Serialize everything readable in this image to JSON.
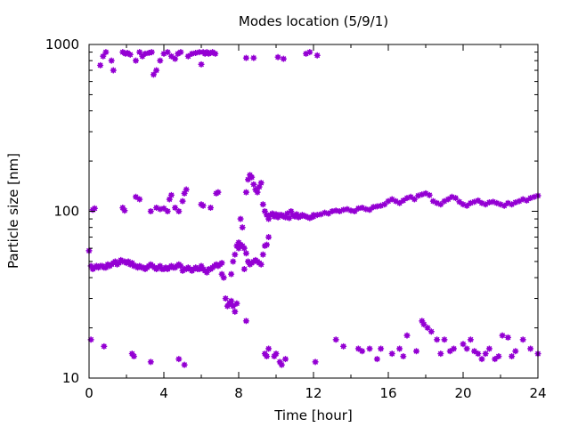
{
  "chart_data": {
    "type": "scatter",
    "title": "Modes location (5/9/1)",
    "xlabel": "Time [hour]",
    "ylabel": "Particle size [nm]",
    "xlim": [
      0,
      24
    ],
    "ylim": [
      10,
      1000
    ],
    "y_scale": "log",
    "x_ticks": [
      0,
      4,
      8,
      12,
      16,
      20,
      24
    ],
    "x_tick_labels": [
      "0",
      "4",
      "8",
      "12",
      "16",
      "20",
      "24"
    ],
    "y_ticks": [
      10,
      100,
      1000
    ],
    "y_tick_labels": [
      "10",
      "100",
      "1000"
    ],
    "grid": false,
    "marker_color": "#9400D3",
    "series": [
      {
        "x": [
          0.6,
          0.75,
          0.9,
          1.2,
          1.3,
          1.8,
          1.95,
          2.05,
          2.2,
          2.5,
          2.7,
          2.85,
          3,
          3.2,
          3.35,
          3.45,
          3.6,
          3.8,
          4,
          4.2,
          4.4,
          4.6,
          4.75,
          4.9,
          5.3,
          5.5,
          5.7,
          5.9,
          6,
          6.1,
          6.2,
          6.3,
          6.4,
          6.5,
          6.6,
          6.75,
          8.4,
          8.8,
          10.1,
          10.4,
          11.6,
          11.8,
          12.2
        ],
        "y": [
          750,
          850,
          900,
          800,
          700,
          900,
          880,
          890,
          870,
          800,
          900,
          850,
          880,
          890,
          900,
          660,
          700,
          800,
          880,
          900,
          850,
          820,
          880,
          900,
          850,
          880,
          890,
          900,
          760,
          900,
          880,
          900,
          880,
          890,
          900,
          880,
          830,
          830,
          840,
          820,
          880,
          900,
          860
        ]
      },
      {
        "x": [
          0,
          0.1,
          0.2,
          0.3,
          0.4,
          0.5,
          0.6,
          0.7,
          0.8,
          0.9,
          1,
          1.1,
          1.2,
          1.3,
          1.4,
          1.5,
          1.6,
          1.7,
          1.8,
          1.9,
          2,
          2.1,
          2.2,
          2.3,
          2.4,
          2.5,
          2.6,
          2.7,
          2.8,
          2.9,
          3,
          3.1,
          3.2,
          3.3,
          3.4,
          3.5,
          3.6,
          3.7,
          3.8,
          3.9,
          4,
          4.1,
          4.2,
          4.3,
          4.4,
          4.5,
          4.6,
          4.7,
          4.8,
          4.9,
          5,
          5.1,
          5.2,
          5.3,
          5.4,
          5.5,
          5.6,
          5.7,
          5.8,
          5.9,
          6,
          6.1,
          6.2,
          6.3,
          6.4,
          6.5,
          6.6,
          6.7,
          6.8,
          6.9,
          7,
          7.1
        ],
        "y": [
          58,
          47,
          45,
          46,
          47,
          46,
          47,
          47,
          46,
          46,
          48,
          47,
          48,
          49,
          50,
          48,
          49,
          51,
          50,
          50,
          49,
          50,
          48,
          49,
          47,
          47,
          46,
          47,
          46,
          46,
          45,
          46,
          47,
          48,
          47,
          46,
          45,
          46,
          47,
          45,
          45,
          46,
          45,
          46,
          47,
          46,
          46,
          47,
          48,
          47,
          44,
          45,
          45,
          46,
          45,
          44,
          45,
          46,
          45,
          45,
          47,
          45,
          44,
          43,
          45,
          45,
          46,
          47,
          48,
          47,
          48,
          49
        ]
      },
      {
        "x": [
          7.1,
          7.2,
          7.3,
          7.4,
          7.5,
          7.6,
          7.7,
          7.8,
          7.9,
          8,
          8.1,
          8.2,
          8.3,
          8.4,
          8.5,
          8.6,
          8.7,
          8.8,
          8.9,
          9,
          9.1,
          9.2,
          9.3,
          9.4,
          9.5,
          9.6,
          9.7,
          9.8,
          9.9,
          10,
          10.1,
          10.2,
          10.3,
          10.4,
          10.5,
          10.6,
          10.7,
          10.8,
          10.9,
          11,
          11.1,
          11.2,
          11.3,
          11.4,
          11.5,
          11.6,
          11.7,
          11.8,
          11.9,
          12
        ],
        "y": [
          42,
          40,
          30,
          27,
          28,
          29,
          27,
          25,
          28,
          60,
          63,
          62,
          60,
          130,
          155,
          165,
          160,
          145,
          135,
          130,
          140,
          148,
          110,
          100,
          95,
          90,
          95,
          97,
          93,
          96,
          92,
          95,
          95,
          93,
          92,
          97,
          91,
          100,
          95,
          93,
          96,
          92,
          93,
          95,
          94,
          93,
          92,
          91,
          92,
          95
        ]
      },
      {
        "x": [
          8.4,
          8.5,
          8.6,
          8.7,
          8.8,
          8.9,
          9,
          9.1,
          9.2,
          9.3,
          9.4,
          9.5,
          9.6
        ],
        "y": [
          56,
          50,
          48,
          49,
          50,
          51,
          50,
          49,
          48,
          55,
          62,
          63,
          70
        ]
      },
      {
        "x": [
          7.6,
          7.7,
          7.8,
          7.9,
          8,
          8.1,
          8.2,
          8.3,
          8.4
        ],
        "y": [
          42,
          50,
          55,
          62,
          65,
          90,
          80,
          45,
          22
        ]
      },
      {
        "x": [
          12,
          12.2,
          12.4,
          12.6,
          12.8,
          13,
          13.2,
          13.4,
          13.6,
          13.8,
          14,
          14.2,
          14.4,
          14.6,
          14.8,
          15,
          15.2,
          15.4,
          15.6,
          15.8,
          16,
          16.2,
          16.4,
          16.6,
          16.8,
          17,
          17.2,
          17.4,
          17.6,
          17.8,
          18,
          18.2,
          18.4,
          18.6,
          18.8,
          19,
          19.2,
          19.4,
          19.6,
          19.8,
          20,
          20.2,
          20.4,
          20.6,
          20.8,
          21,
          21.2,
          21.4,
          21.6,
          21.8,
          22,
          22.2,
          22.4,
          22.6,
          22.8,
          23,
          23.2,
          23.4,
          23.6,
          23.8,
          24
        ],
        "y": [
          93,
          95,
          96,
          98,
          97,
          100,
          101,
          100,
          102,
          103,
          101,
          100,
          104,
          105,
          103,
          102,
          106,
          107,
          108,
          110,
          115,
          118,
          115,
          112,
          116,
          120,
          122,
          118,
          124,
          126,
          128,
          125,
          115,
          112,
          110,
          115,
          118,
          122,
          120,
          114,
          110,
          108,
          112,
          114,
          116,
          112,
          110,
          113,
          114,
          112,
          110,
          108,
          112,
          110,
          113,
          115,
          118,
          116,
          120,
          122,
          124
        ]
      },
      {
        "x": [
          0.2,
          0.3,
          1.8,
          1.9,
          2.5,
          2.7,
          3.3,
          3.6,
          3.8,
          4,
          4.2,
          4.3,
          4.4,
          4.6,
          4.8,
          5,
          5.1,
          5.2,
          6,
          6.1,
          6.5,
          6.8,
          6.9
        ],
        "y": [
          102,
          104,
          105,
          101,
          122,
          118,
          100,
          105,
          103,
          104,
          100,
          118,
          125,
          105,
          100,
          115,
          128,
          135,
          110,
          108,
          105,
          128,
          130
        ]
      },
      {
        "x": [
          0.1,
          0.8,
          2.3,
          2.4,
          3.3,
          4.8,
          5.1,
          9.4,
          9.5,
          9.6,
          9.9,
          10,
          10.2,
          10.3,
          10.5,
          12.1,
          13.2,
          13.6,
          14.4,
          14.6,
          15,
          15.4,
          15.6,
          16.2,
          16.6,
          16.8,
          17,
          17.5,
          17.8,
          17.9,
          18.1,
          18.3,
          18.6,
          18.8,
          19,
          19.3,
          19.5,
          20,
          20.2,
          20.4,
          20.6,
          20.8,
          21,
          21.2,
          21.4,
          21.7,
          21.9,
          22.1,
          22.4,
          22.6,
          22.8,
          23.2,
          23.6,
          24
        ],
        "y": [
          17,
          15.5,
          14,
          13.5,
          12.5,
          13,
          12,
          14,
          13.5,
          15,
          13.5,
          14,
          12.5,
          12,
          13,
          12.5,
          17,
          15.5,
          15,
          14.5,
          15,
          13,
          15,
          14,
          15,
          13.5,
          18,
          14.5,
          22,
          21,
          20,
          19,
          17,
          14,
          17,
          14.5,
          15,
          16,
          15,
          17,
          14.5,
          14,
          13,
          14,
          15,
          13,
          13.5,
          18,
          17.5,
          13.5,
          14.5,
          17,
          15,
          14
        ]
      }
    ]
  }
}
